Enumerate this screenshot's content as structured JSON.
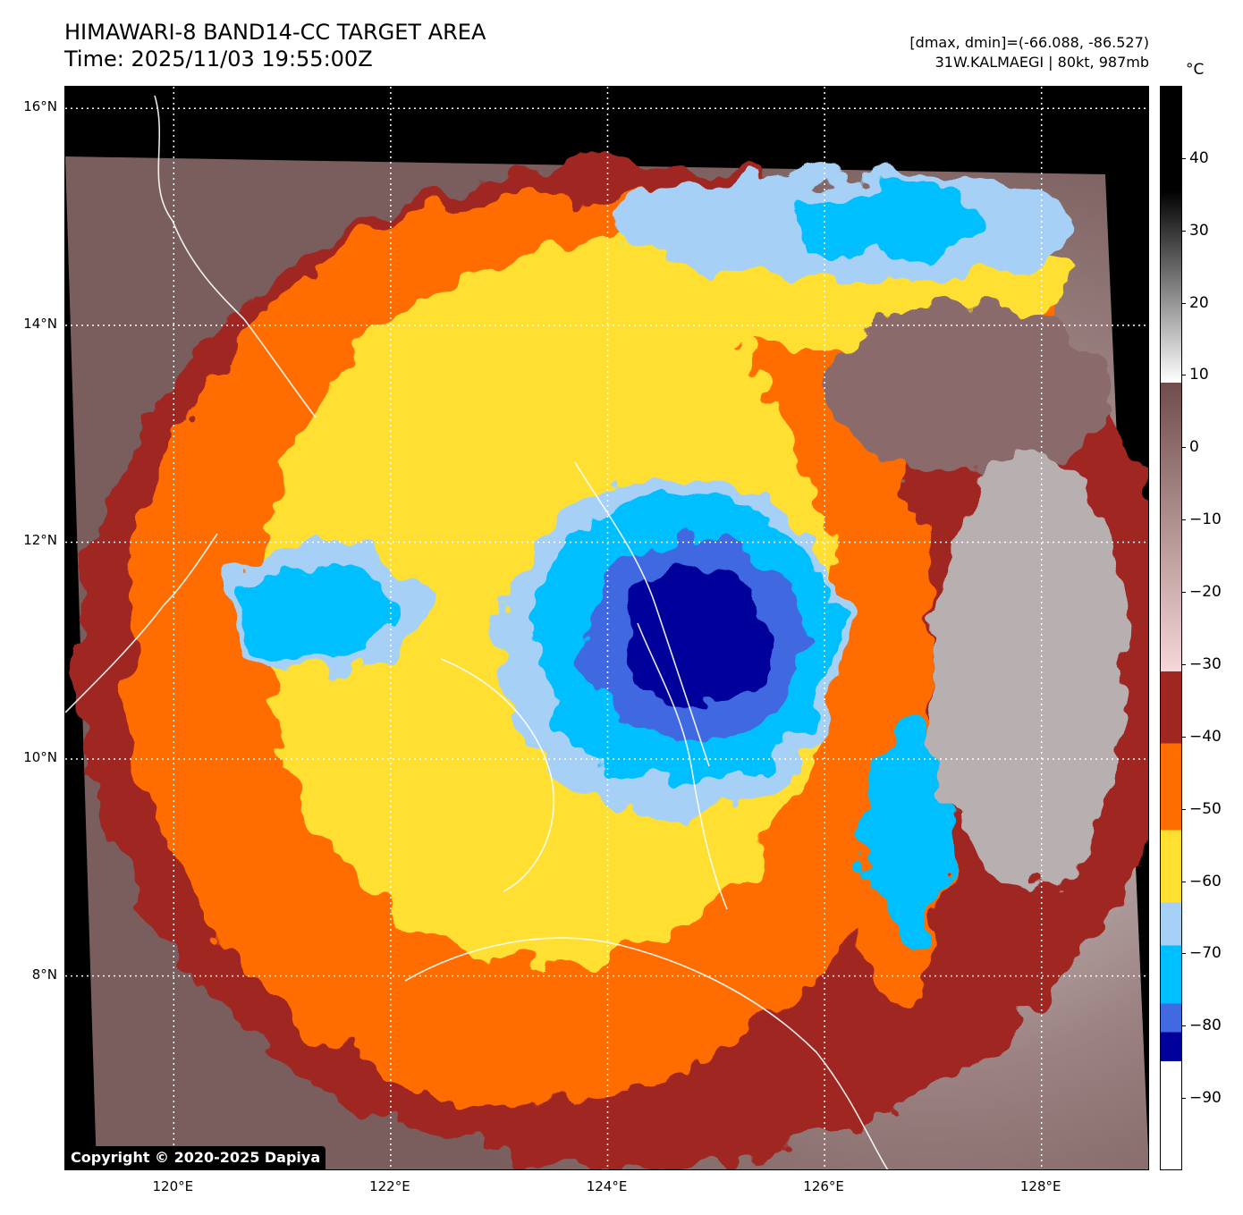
{
  "header": {
    "title_line1": "HIMAWARI-8 BAND14-CC TARGET AREA",
    "title_line2": "Time: 2025/11/03 19:55:00Z",
    "info_line1": "[dmax, dmin]=(-66.088, -86.527)",
    "info_line2": "31W.KALMAEGI | 80kt, 987mb"
  },
  "map": {
    "lon_range": [
      119.0,
      129.0
    ],
    "lat_range": [
      6.2,
      16.2
    ],
    "lat_ticks": [
      {
        "value": 16,
        "label": "16°N"
      },
      {
        "value": 14,
        "label": "14°N"
      },
      {
        "value": 12,
        "label": "12°N"
      },
      {
        "value": 10,
        "label": "10°N"
      },
      {
        "value": 8,
        "label": "8°N"
      }
    ],
    "lon_ticks": [
      {
        "value": 120,
        "label": "120°E"
      },
      {
        "value": 122,
        "label": "122°E"
      },
      {
        "value": 124,
        "label": "124°E"
      },
      {
        "value": 126,
        "label": "126°E"
      },
      {
        "value": 128,
        "label": "128°E"
      }
    ],
    "grid": "dotted-white",
    "copyright": "Copyright © 2020-2025 Dapiya"
  },
  "colorbar": {
    "unit": "°C",
    "range": [
      -100,
      50
    ],
    "ticks": [
      {
        "value": 40,
        "label": "40"
      },
      {
        "value": 30,
        "label": "30"
      },
      {
        "value": 20,
        "label": "20"
      },
      {
        "value": 10,
        "label": "10"
      },
      {
        "value": 0,
        "label": "0"
      },
      {
        "value": -10,
        "label": "−10"
      },
      {
        "value": -20,
        "label": "−20"
      },
      {
        "value": -30,
        "label": "−30"
      },
      {
        "value": -40,
        "label": "−40"
      },
      {
        "value": -50,
        "label": "−50"
      },
      {
        "value": -60,
        "label": "−60"
      },
      {
        "value": -70,
        "label": "−70"
      },
      {
        "value": -80,
        "label": "−80"
      },
      {
        "value": -90,
        "label": "−90"
      }
    ],
    "segments": [
      {
        "from": 9,
        "to": 50,
        "color": "gradient-black-white"
      },
      {
        "from": -31,
        "to": 9,
        "color": "gradient-brown-pink"
      },
      {
        "from": -41,
        "to": -31,
        "color": "#a02622"
      },
      {
        "from": -53,
        "to": -41,
        "color": "#ff6d00"
      },
      {
        "from": -63,
        "to": -53,
        "color": "#ffe030"
      },
      {
        "from": -69,
        "to": -63,
        "color": "#a6d0f6"
      },
      {
        "from": -77,
        "to": -69,
        "color": "#00bfff"
      },
      {
        "from": -81,
        "to": -77,
        "color": "#4169e1"
      },
      {
        "from": -85,
        "to": -81,
        "color": "#00009b"
      },
      {
        "from": -100,
        "to": -85,
        "color": "#ffffff"
      }
    ]
  },
  "cloud_regions": [
    {
      "name": "warm-cloud-base",
      "color": "#a02622",
      "lon": 119.1,
      "lat": 15.5,
      "w": 10.2,
      "h": 9.3
    },
    {
      "name": "cold-ring",
      "color": "#ff6d00",
      "lon": 119.6,
      "lat": 15.2,
      "w": 7.4,
      "h": 8.4
    },
    {
      "name": "cold-ring-east",
      "color": "#ff6d00",
      "lon": 122.9,
      "lat": 15.3,
      "w": 5.3,
      "h": 2.0
    },
    {
      "name": "colder-cloud",
      "color": "#ffe030",
      "lon": 120.8,
      "lat": 14.6,
      "w": 5.3,
      "h": 6.5
    },
    {
      "name": "colder-band-north",
      "color": "#ffe030",
      "lon": 123.2,
      "lat": 15.0,
      "w": 5.1,
      "h": 1.2
    },
    {
      "name": "cold-top",
      "color": "#a6d0f6",
      "lon": 123.0,
      "lat": 12.6,
      "w": 3.2,
      "h": 3.1
    },
    {
      "name": "cold-top-north",
      "color": "#a6d0f6",
      "lon": 124.0,
      "lat": 15.4,
      "w": 4.4,
      "h": 1.0
    },
    {
      "name": "cold-top-west",
      "color": "#a6d0f6",
      "lon": 120.5,
      "lat": 12.0,
      "w": 1.8,
      "h": 1.2
    },
    {
      "name": "very-cold-top",
      "color": "#00bfff",
      "lon": 123.3,
      "lat": 12.4,
      "w": 2.8,
      "h": 2.6
    },
    {
      "name": "very-cold-north",
      "color": "#00bfff",
      "lon": 125.7,
      "lat": 15.3,
      "w": 1.8,
      "h": 0.7
    },
    {
      "name": "very-cold-west",
      "color": "#00bfff",
      "lon": 120.6,
      "lat": 11.8,
      "w": 1.4,
      "h": 0.9
    },
    {
      "name": "coldest-core",
      "color": "#4169e1",
      "lon": 123.8,
      "lat": 12.1,
      "w": 2.0,
      "h": 2.0
    },
    {
      "name": "extreme-core",
      "color": "#00009b",
      "lon": 124.1,
      "lat": 11.8,
      "w": 1.4,
      "h": 1.3
    },
    {
      "name": "east-band",
      "color": "#ff6d00",
      "lon": 126.2,
      "lat": 10.7,
      "w": 1.0,
      "h": 2.9
    },
    {
      "name": "east-band-inner",
      "color": "#00bfff",
      "lon": 126.4,
      "lat": 10.4,
      "w": 0.8,
      "h": 2.2
    },
    {
      "name": "clear-east",
      "color": "#8a6b6b",
      "lon": 126.0,
      "lat": 14.2,
      "w": 2.6,
      "h": 1.6
    },
    {
      "name": "clear-east-grey",
      "color": "#b8b0b0",
      "lon": 127.0,
      "lat": 12.8,
      "w": 1.8,
      "h": 4.0
    }
  ]
}
